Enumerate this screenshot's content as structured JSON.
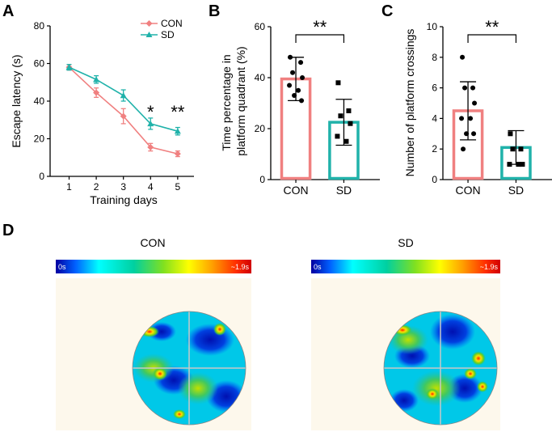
{
  "colors": {
    "con": "#F08080",
    "sd": "#20B2AA",
    "axis": "#000000",
    "arena_bg": "#FDF8EC"
  },
  "panel_labels": [
    "A",
    "B",
    "C",
    "D"
  ],
  "chart_data": [
    {
      "id": "A",
      "type": "line",
      "xlabel": "Training days",
      "ylabel": "Escape latency (s)",
      "x": [
        1,
        2,
        3,
        4,
        5
      ],
      "xlim": [
        0.3,
        5.6
      ],
      "ylim": [
        0,
        80
      ],
      "yticks": [
        0,
        20,
        40,
        60,
        80
      ],
      "series": [
        {
          "name": "CON",
          "marker": "diamond",
          "values": [
            58,
            44.5,
            32,
            15.5,
            12
          ],
          "errors": [
            1.5,
            2.5,
            4,
            2,
            1.5
          ]
        },
        {
          "name": "SD",
          "marker": "triangle",
          "values": [
            58,
            51.5,
            43,
            28,
            24
          ],
          "errors": [
            1.5,
            2,
            3,
            3,
            2
          ]
        }
      ],
      "annotations": [
        {
          "x": 4,
          "text": "*"
        },
        {
          "x": 5,
          "text": "**"
        }
      ]
    },
    {
      "id": "B",
      "type": "bar",
      "categories": [
        "CON",
        "SD"
      ],
      "ylabel": "Time percentage in platform quadrant (%)",
      "ylabel_lines": [
        "Time percentage in",
        "platform quadrant (%)"
      ],
      "ylim": [
        0,
        60
      ],
      "yticks": [
        0,
        20,
        40,
        60
      ],
      "values": [
        39.5,
        22.5
      ],
      "sd": [
        8.5,
        9
      ],
      "points": [
        [
          48,
          46,
          42,
          40,
          37,
          35,
          33,
          31
        ],
        [
          38,
          27,
          25,
          22,
          17,
          15
        ]
      ],
      "significance": "**"
    },
    {
      "id": "C",
      "type": "bar",
      "categories": [
        "CON",
        "SD"
      ],
      "ylabel": "Number of platform crossings",
      "ylim": [
        0,
        10
      ],
      "yticks": [
        0,
        2,
        4,
        6,
        8,
        10
      ],
      "values": [
        4.5,
        2.1
      ],
      "sd": [
        1.9,
        1.1
      ],
      "points": [
        [
          8,
          6,
          6,
          5,
          4,
          4,
          3,
          3,
          2
        ],
        [
          3,
          2,
          2,
          1,
          1,
          1
        ]
      ],
      "significance": "**"
    },
    {
      "id": "D",
      "type": "heatmap",
      "maps": [
        {
          "title": "CON",
          "scale_min": "0s",
          "scale_max": "~1.9s"
        },
        {
          "title": "SD",
          "scale_min": "0s",
          "scale_max": "~1.9s"
        }
      ]
    }
  ]
}
